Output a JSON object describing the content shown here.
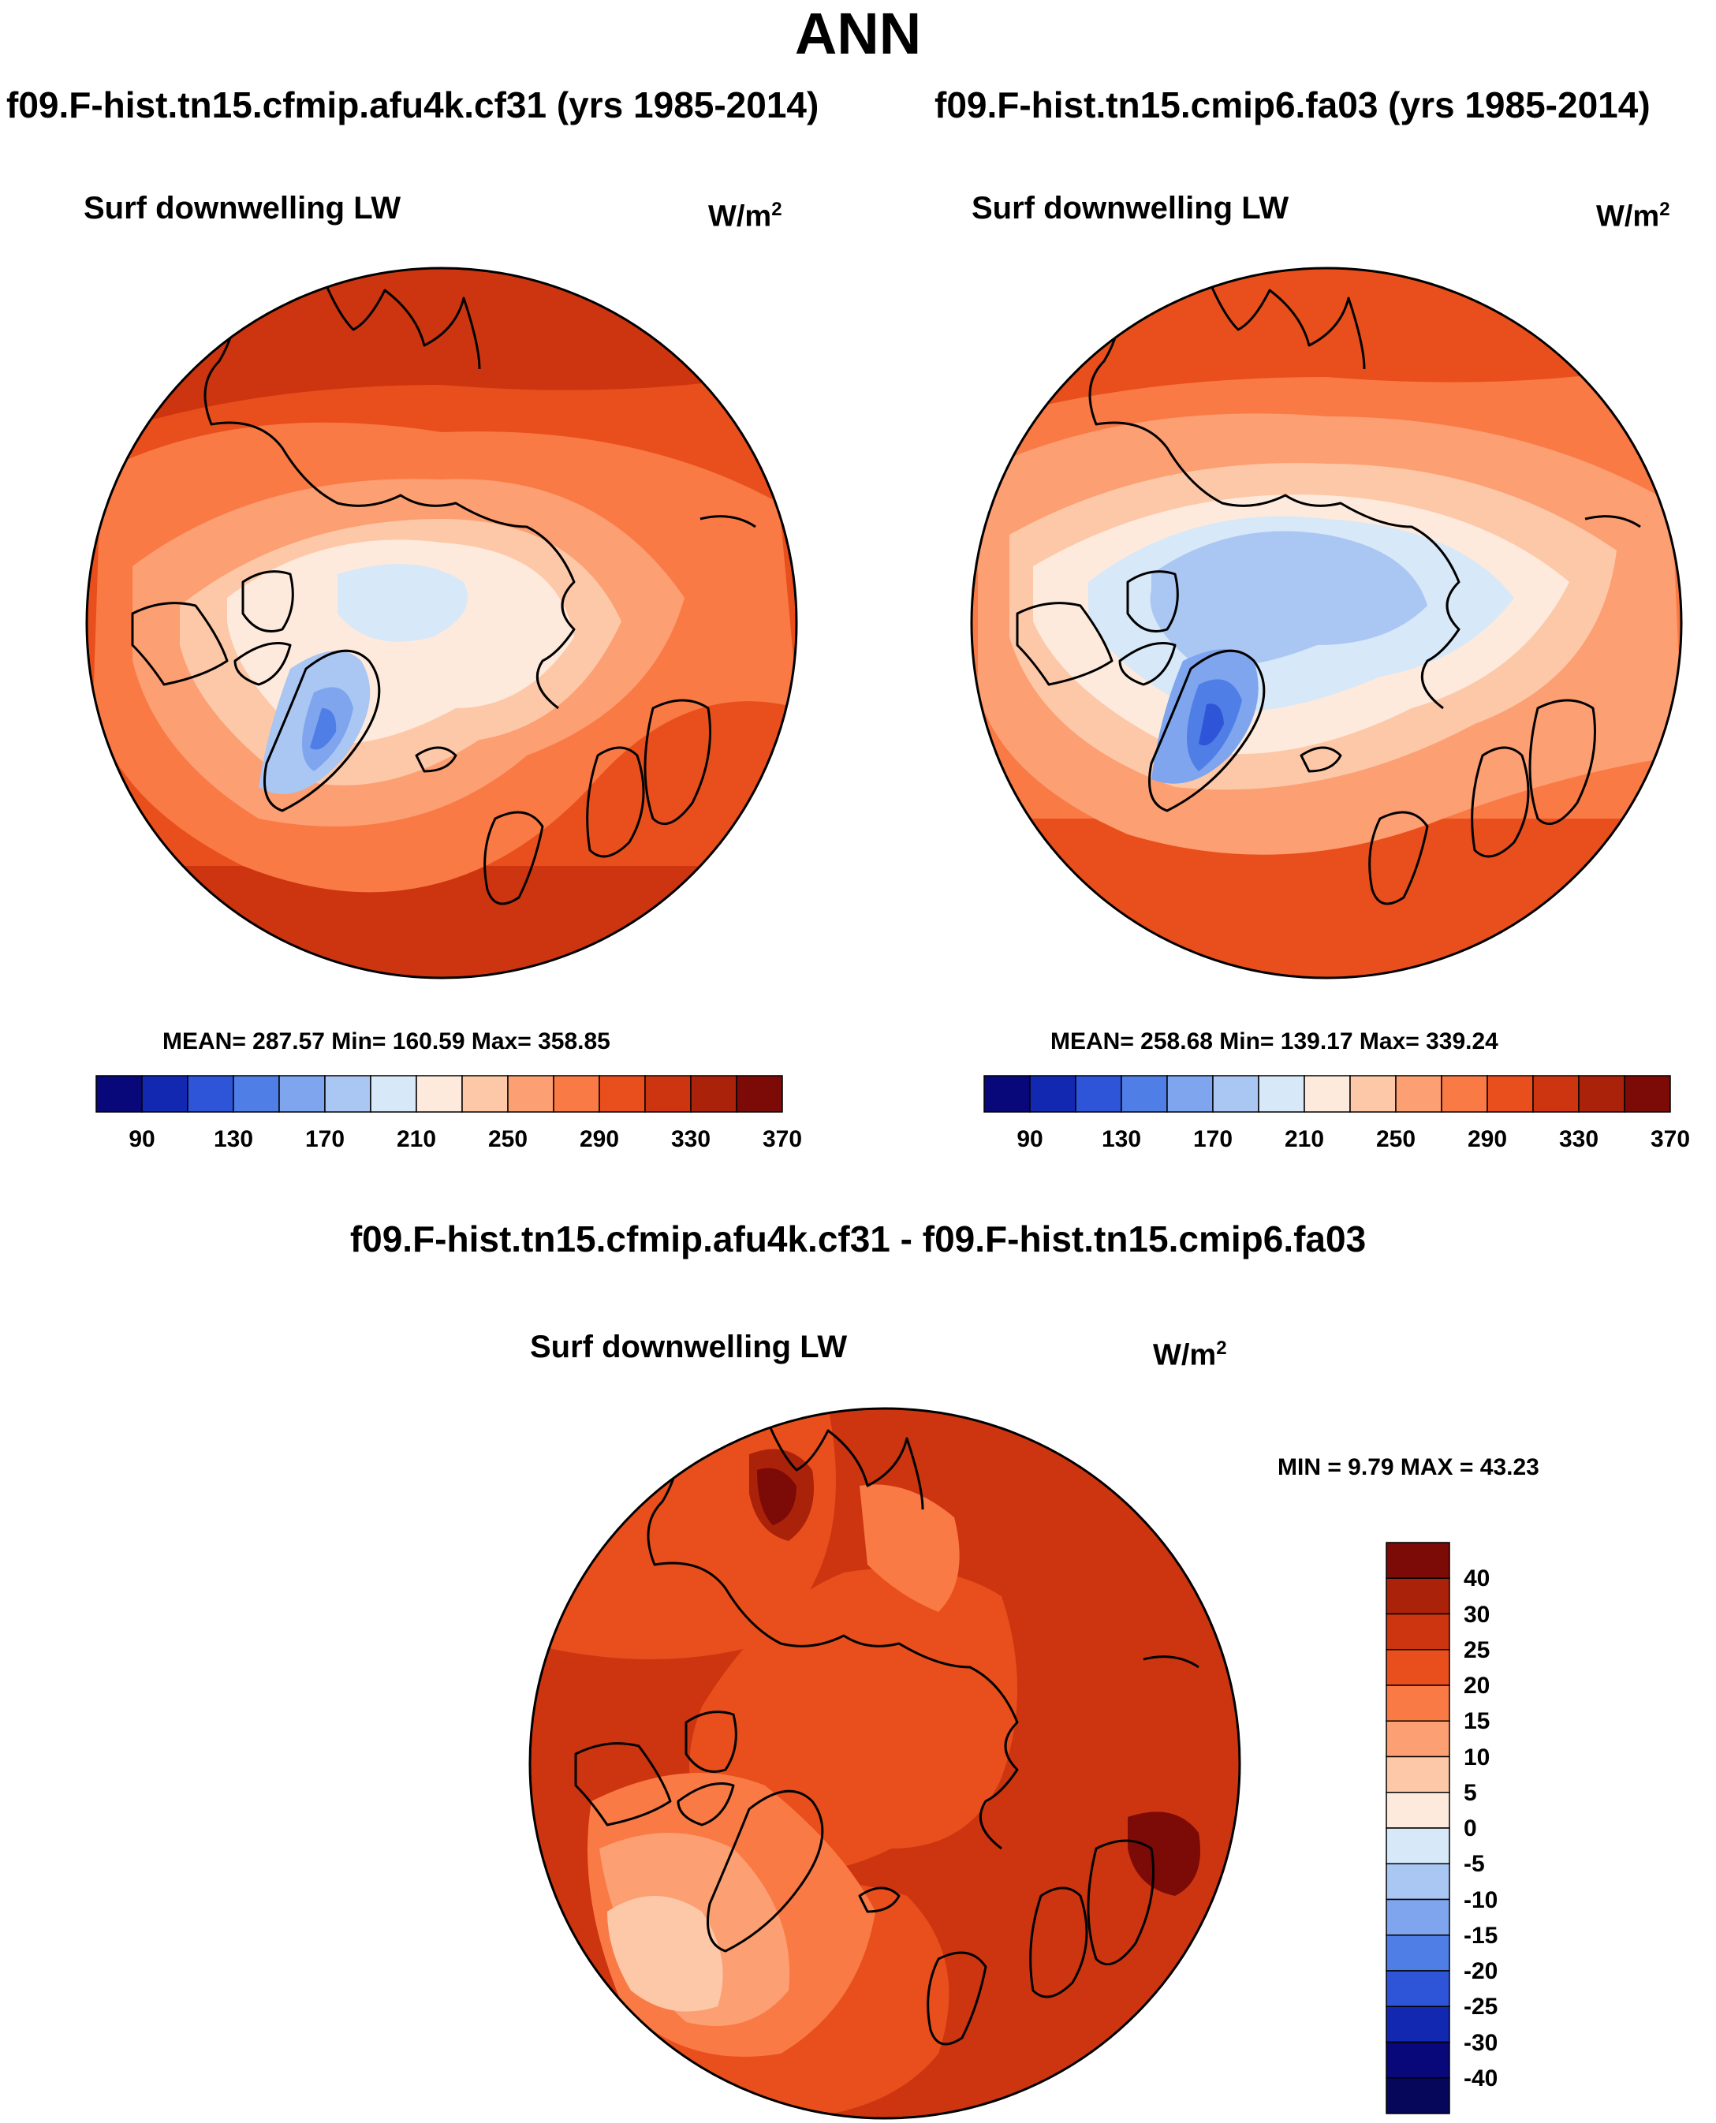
{
  "title": "ANN",
  "colors": {
    "scale": [
      "#08087a",
      "#1228b0",
      "#2e55d8",
      "#4f7ee6",
      "#7ea5ee",
      "#aac6f3",
      "#d7e8f8",
      "#fdeadd",
      "#fdc8a8",
      "#fc9f72",
      "#f97a45",
      "#e94f1c",
      "#cd3510",
      "#ab220b",
      "#7c0a06"
    ],
    "coast": "#000000"
  },
  "panels": [
    {
      "case_title": "f09.F-hist.tn15.cfmip.afu4k.cf31 (yrs 1985-2014)",
      "variable": "Surf downwelling LW",
      "units": "W/m",
      "units_sup": "2",
      "stats": "MEAN= 287.57  Min= 160.59  Max= 358.85",
      "colorbar_labels": [
        "90",
        "130",
        "170",
        "210",
        "250",
        "290",
        "330",
        "370"
      ]
    },
    {
      "case_title": "f09.F-hist.tn15.cmip6.fa03 (yrs 1985-2014)",
      "variable": "Surf downwelling LW",
      "units": "W/m",
      "units_sup": "2",
      "stats": "MEAN= 258.68  Min= 139.17  Max= 339.24",
      "colorbar_labels": [
        "90",
        "130",
        "170",
        "210",
        "250",
        "290",
        "330",
        "370"
      ]
    }
  ],
  "difference": {
    "title": "f09.F-hist.tn15.cfmip.afu4k.cf31 - f09.F-hist.tn15.cmip6.fa03",
    "variable": "Surf downwelling LW",
    "units": "W/m",
    "units_sup": "2",
    "minmax": "MIN =   9.79 MAX =  43.23",
    "colorbar_labels": [
      "40",
      "30",
      "25",
      "20",
      "15",
      "10",
      "5",
      "0",
      "-5",
      "-10",
      "-15",
      "-20",
      "-25",
      "-30",
      "-40"
    ]
  }
}
